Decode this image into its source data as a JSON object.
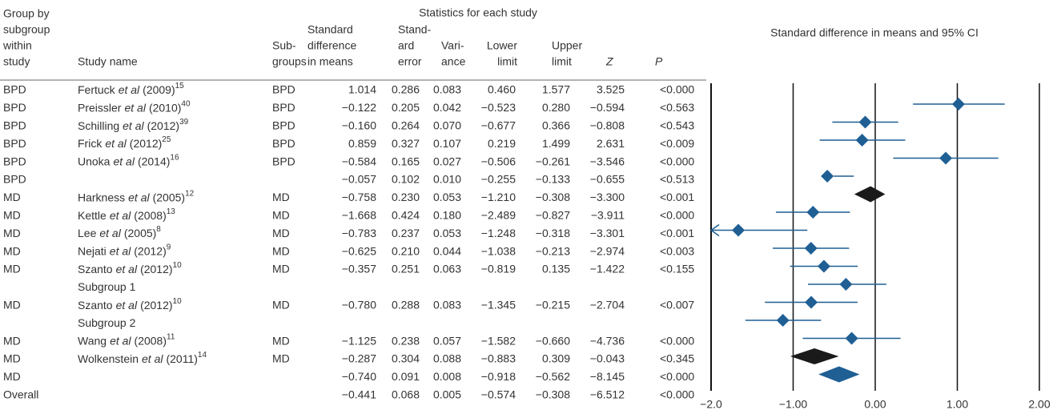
{
  "chart_data": {
    "type": "forest",
    "stats_title": "Statistics for each study",
    "plot_title": "Standard difference in means and 95% CI",
    "columns": [
      {
        "lines": [
          "Group by",
          "subgroup",
          "within",
          "study"
        ]
      },
      {
        "lines": [
          "Study name"
        ]
      },
      {
        "lines": [
          "Sub-",
          "groups"
        ]
      },
      {
        "lines": [
          "Standard",
          "difference",
          "in means"
        ]
      },
      {
        "lines": [
          "Stand-",
          "ard",
          "error"
        ]
      },
      {
        "lines": [
          "Vari-",
          "ance"
        ]
      },
      {
        "lines": [
          "Lower",
          "limit"
        ]
      },
      {
        "lines": [
          "Upper",
          "limit"
        ]
      },
      {
        "lines": [
          "Z"
        ]
      },
      {
        "lines": [
          "P"
        ]
      }
    ],
    "color": "#1f5f94",
    "rows": [
      {
        "group": "BPD",
        "study": {
          "author": "Fertuck",
          "etal": "et al",
          "year": "(2009)",
          "ref": "15"
        },
        "subgroup": "BPD",
        "values": [
          1.014,
          0.286,
          0.083,
          0.46,
          1.577,
          3.525
        ],
        "value_labels": [
          "1.014",
          "0.286",
          "0.083",
          "0.460",
          "1.577",
          "3.525"
        ],
        "p": "<0.000"
      },
      {
        "group": "BPD",
        "study": {
          "author": "Preissler",
          "etal": "et al",
          "year": "(2010)",
          "ref": "40"
        },
        "subgroup": "BPD",
        "values": [
          -0.122,
          0.205,
          0.042,
          -0.523,
          0.28,
          -0.594
        ],
        "value_labels": [
          "−0.122",
          "0.205",
          "0.042",
          "−0.523",
          "0.280",
          "−0.594"
        ],
        "p": "<0.563"
      },
      {
        "group": "BPD",
        "study": {
          "author": "Schilling",
          "etal": "et al",
          "year": "(2012)",
          "ref": "39"
        },
        "subgroup": "BPD",
        "values": [
          -0.16,
          0.264,
          0.07,
          -0.677,
          0.366,
          -0.808
        ],
        "value_labels": [
          "−0.160",
          "0.264",
          "0.070",
          "−0.677",
          "0.366",
          "−0.808"
        ],
        "p": "<0.543"
      },
      {
        "group": "BPD",
        "study": {
          "author": "Frick",
          "etal": "et al",
          "year": "(2012)",
          "ref": "25"
        },
        "subgroup": "BPD",
        "values": [
          0.859,
          0.327,
          0.107,
          0.219,
          1.499,
          2.631
        ],
        "value_labels": [
          "0.859",
          "0.327",
          "0.107",
          "0.219",
          "1.499",
          "2.631"
        ],
        "p": "<0.009"
      },
      {
        "group": "BPD",
        "study": {
          "author": "Unoka",
          "etal": "et al",
          "year": "(2014)",
          "ref": "16"
        },
        "subgroup": "BPD",
        "values": [
          -0.584,
          0.165,
          0.027,
          -0.506,
          -0.261,
          -3.546
        ],
        "value_labels": [
          "−0.584",
          "0.165",
          "0.027",
          "−0.506",
          "−0.261",
          "−3.546"
        ],
        "p": "<0.000"
      },
      {
        "group": "BPD",
        "color": "#1a1a1a",
        "values": [
          -0.057,
          0.102,
          0.01,
          -0.255,
          -0.133,
          -0.655
        ],
        "value_labels": [
          "−0.057",
          "0.102",
          "0.010",
          "−0.255",
          "−0.133",
          "−0.655"
        ],
        "p": "<0.513"
      },
      {
        "group": "MD",
        "study": {
          "author": "Harkness",
          "etal": "et al",
          "year": "(2005)",
          "ref": "12"
        },
        "subgroup": "MD",
        "values": [
          -0.758,
          0.23,
          0.053,
          -1.21,
          -0.308,
          -3.3
        ],
        "value_labels": [
          "−0.758",
          "0.230",
          "0.053",
          "−1.210",
          "−0.308",
          "−3.300"
        ],
        "p": "<0.001"
      },
      {
        "group": "MD",
        "study": {
          "author": "Kettle",
          "etal": "et al",
          "year": "(2008)",
          "ref": "13"
        },
        "subgroup": "MD",
        "values": [
          -1.668,
          0.424,
          0.18,
          -2.489,
          -0.827,
          -3.911
        ],
        "value_labels": [
          "−1.668",
          "0.424",
          "0.180",
          "−2.489",
          "−0.827",
          "−3.911"
        ],
        "p": "<0.000"
      },
      {
        "group": "MD",
        "study": {
          "author": "Lee",
          "etal": "et al",
          "year": "(2005)",
          "ref": "8"
        },
        "subgroup": "MD",
        "values": [
          -0.783,
          0.237,
          0.053,
          -1.248,
          -0.318,
          -3.301
        ],
        "value_labels": [
          "−0.783",
          "0.237",
          "0.053",
          "−1.248",
          "−0.318",
          "−3.301"
        ],
        "p": "<0.001"
      },
      {
        "group": "MD",
        "study": {
          "author": "Nejati",
          "etal": "et al",
          "year": "(2012)",
          "ref": "9"
        },
        "subgroup": "MD",
        "values": [
          -0.625,
          0.21,
          0.044,
          -1.038,
          -0.213,
          -2.974
        ],
        "value_labels": [
          "−0.625",
          "0.210",
          "0.044",
          "−1.038",
          "−0.213",
          "−2.974"
        ],
        "p": "<0.003"
      },
      {
        "group": "MD",
        "study": {
          "author": "Szanto",
          "etal": "et al",
          "year": "(2012)",
          "ref": "10",
          "extra": "Subgroup 1"
        },
        "subgroup": "MD",
        "values": [
          -0.357,
          0.251,
          0.063,
          -0.819,
          0.135,
          -1.422
        ],
        "value_labels": [
          "−0.357",
          "0.251",
          "0.063",
          "−0.819",
          "0.135",
          "−1.422"
        ],
        "p": "<0.155"
      },
      {
        "group": "MD",
        "study": {
          "author": "Szanto",
          "etal": "et al",
          "year": "(2012)",
          "ref": "10",
          "extra": "Subgroup 2"
        },
        "subgroup": "MD",
        "values": [
          -0.78,
          0.288,
          0.083,
          -1.345,
          -0.215,
          -2.704
        ],
        "value_labels": [
          "−0.780",
          "0.288",
          "0.083",
          "−1.345",
          "−0.215",
          "−2.704"
        ],
        "p": "<0.007"
      },
      {
        "group": "MD",
        "study": {
          "author": "Wang",
          "etal": "et al",
          "year": "(2008)",
          "ref": "11"
        },
        "subgroup": "MD",
        "values": [
          -1.125,
          0.238,
          0.057,
          -1.582,
          -0.66,
          -4.736
        ],
        "value_labels": [
          "−1.125",
          "0.238",
          "0.057",
          "−1.582",
          "−0.660",
          "−4.736"
        ],
        "p": "<0.000"
      },
      {
        "group": "MD",
        "study": {
          "author": "Wolkenstein",
          "etal": "et al",
          "year": "(2011)",
          "ref": "14"
        },
        "subgroup": "MD",
        "values": [
          -0.287,
          0.304,
          0.088,
          -0.883,
          0.309,
          -0.043
        ],
        "value_labels": [
          "−0.287",
          "0.304",
          "0.088",
          "−0.883",
          "0.309",
          "−0.043"
        ],
        "p": "<0.345"
      },
      {
        "group": "MD",
        "color": "#1a1a1a",
        "values": [
          -0.74,
          0.091,
          0.008,
          -0.918,
          -0.562,
          -8.145
        ],
        "value_labels": [
          "−0.740",
          "0.091",
          "0.008",
          "−0.918",
          "−0.562",
          "−8.145"
        ],
        "p": "<0.000"
      },
      {
        "group": "Overall",
        "color": "#1f5f94",
        "values": [
          -0.441,
          0.068,
          0.005,
          -0.574,
          -0.308,
          -6.512
        ],
        "value_labels": [
          "−0.441",
          "0.068",
          "0.005",
          "−0.574",
          "−0.308",
          "−6.512"
        ],
        "p": "<0.000"
      }
    ],
    "xlim": [
      -2,
      2
    ],
    "xticks": [
      {
        "value": -2,
        "label": "−2.0"
      },
      {
        "value": -1,
        "label": "−1.00"
      },
      {
        "value": 0,
        "label": "0.00"
      },
      {
        "value": 1,
        "label": "1.00"
      },
      {
        "value": 2,
        "label": "2.00"
      }
    ],
    "grid": true
  }
}
